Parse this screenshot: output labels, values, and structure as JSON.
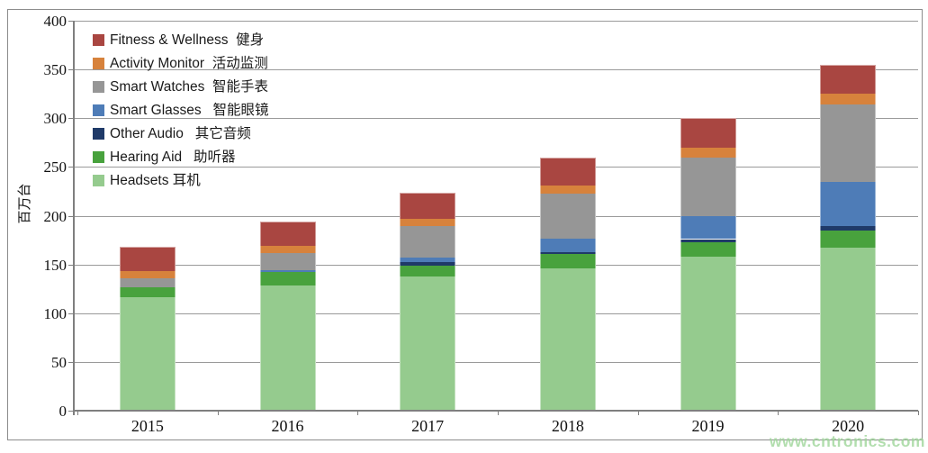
{
  "watermark": "www.cntronics.com",
  "chart_data": {
    "type": "bar",
    "stacked": true,
    "title": "",
    "xlabel": "",
    "ylabel": "百万台",
    "ylim": [
      0,
      400
    ],
    "ytick_interval": 50,
    "y_ticks": [
      0,
      50,
      100,
      150,
      200,
      250,
      300,
      350,
      400
    ],
    "grid": "horizontal",
    "legend_position": "top-left-inside",
    "categories": [
      "2015",
      "2016",
      "2017",
      "2018",
      "2019",
      "2020"
    ],
    "totals": [
      168,
      194,
      224,
      260,
      300,
      355
    ],
    "series": [
      {
        "id": "fitness-wellness",
        "label": "Fitness & Wellness  健身",
        "name_en": "Fitness & Wellness",
        "name_zh": "健身",
        "color": "#A94641",
        "values": [
          25,
          25,
          27,
          29,
          30,
          30
        ]
      },
      {
        "id": "activity-monitor",
        "label": "Activity Monitor  活动监测",
        "name_en": "Activity Monitor",
        "name_zh": "活动监测",
        "color": "#D7823C",
        "values": [
          7,
          7,
          8,
          8,
          10,
          11
        ]
      },
      {
        "id": "smart-watches",
        "label": "Smart Watches  智能手表",
        "name_en": "Smart Watches",
        "name_zh": "智能手表",
        "color": "#969696",
        "values": [
          9,
          18,
          32,
          47,
          60,
          79
        ]
      },
      {
        "id": "smart-glasses",
        "label": "Smart Glasses   智能眼镜",
        "name_en": "Smart Glasses",
        "name_zh": "智能眼镜",
        "color": "#4E7CB7",
        "values": [
          0,
          2,
          5,
          13,
          24,
          46
        ]
      },
      {
        "id": "other-audio",
        "label": "Other Audio   其它音频",
        "name_en": "Other Audio",
        "name_zh": "其它音频",
        "color": "#1F3A68",
        "values": [
          0,
          0,
          3,
          2,
          3,
          4
        ]
      },
      {
        "id": "hearing-aid",
        "label": "Hearing Aid   助听器",
        "name_en": "Hearing Aid",
        "name_zh": "助听器",
        "color": "#48A23D",
        "values": [
          11,
          14,
          11,
          15,
          15,
          18
        ]
      },
      {
        "id": "headsets",
        "label": "Headsets 耳机",
        "name_en": "Headsets",
        "name_zh": "耳机",
        "color": "#95CB8E",
        "values": [
          116,
          128,
          138,
          146,
          158,
          167
        ]
      }
    ]
  }
}
